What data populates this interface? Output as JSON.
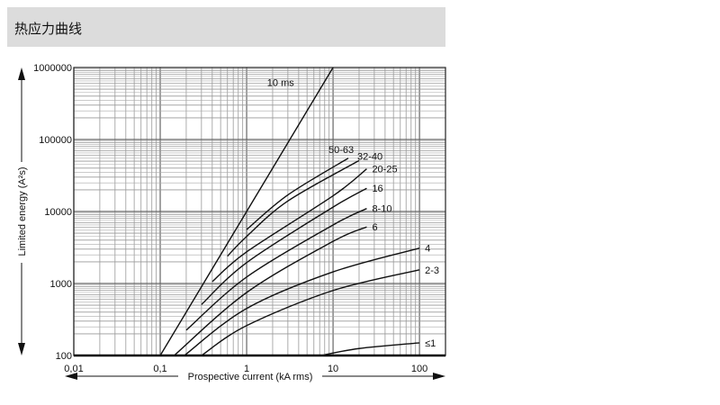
{
  "header": {
    "title": "热应力曲线"
  },
  "chart_data": {
    "type": "line",
    "xlabel": "Prospective current (kA rms)",
    "ylabel": "Limited energy (A²s)",
    "x_scale": "log",
    "y_scale": "log",
    "xlim": [
      0.01,
      200
    ],
    "ylim": [
      100,
      1000000
    ],
    "grid": true,
    "x_ticks": [
      {
        "value": 0.01,
        "label": "0,01"
      },
      {
        "value": 0.1,
        "label": "0,1"
      },
      {
        "value": 1,
        "label": "1"
      },
      {
        "value": 10,
        "label": "10"
      },
      {
        "value": 100,
        "label": "100"
      }
    ],
    "y_ticks": [
      {
        "value": 100,
        "label": "100"
      },
      {
        "value": 1000,
        "label": "1000"
      },
      {
        "value": 10000,
        "label": "10000"
      },
      {
        "value": 100000,
        "label": "100000"
      },
      {
        "value": 1000000,
        "label": "1000000"
      }
    ],
    "series": [
      {
        "name": "10 ms",
        "points": [
          [
            0.1,
            100
          ],
          [
            1,
            10000
          ],
          [
            10,
            1000000
          ]
        ]
      },
      {
        "name": "50-63",
        "points": [
          [
            1,
            5600
          ],
          [
            3,
            17000
          ],
          [
            15,
            55000
          ]
        ]
      },
      {
        "name": "32-40",
        "points": [
          [
            0.6,
            2400
          ],
          [
            1,
            4500
          ],
          [
            3,
            14000
          ],
          [
            20,
            51000
          ]
        ]
      },
      {
        "name": "20-25",
        "points": [
          [
            0.4,
            1060
          ],
          [
            1,
            2750
          ],
          [
            10,
            16500
          ],
          [
            24.5,
            39000
          ]
        ]
      },
      {
        "name": "16",
        "points": [
          [
            0.3,
            510
          ],
          [
            1,
            1950
          ],
          [
            10,
            11500
          ],
          [
            24.5,
            21000
          ]
        ]
      },
      {
        "name": "8-10",
        "points": [
          [
            0.2,
            225
          ],
          [
            1,
            1230
          ],
          [
            10,
            6500
          ],
          [
            24.5,
            11000
          ]
        ]
      },
      {
        "name": "6",
        "points": [
          [
            0.145,
            100
          ],
          [
            1,
            750
          ],
          [
            10,
            3850
          ],
          [
            24.5,
            6100
          ]
        ]
      },
      {
        "name": "4",
        "points": [
          [
            0.19,
            100
          ],
          [
            1,
            450
          ],
          [
            10,
            1450
          ],
          [
            100,
            3100
          ]
        ]
      },
      {
        "name": "2-3",
        "points": [
          [
            0.3,
            100
          ],
          [
            1,
            260
          ],
          [
            10,
            800
          ],
          [
            100,
            1550
          ]
        ]
      },
      {
        "name": "≤1",
        "points": [
          [
            7.3,
            100
          ],
          [
            20,
            125
          ],
          [
            100,
            150
          ]
        ]
      }
    ]
  }
}
